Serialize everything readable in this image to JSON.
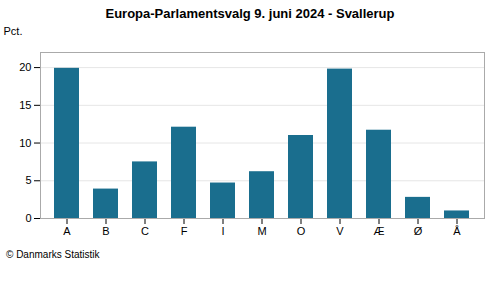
{
  "chart_data": {
    "type": "bar",
    "title": "Europa-Parlamentsvalg 9. juni 2024 - Svallerup",
    "categories": [
      "A",
      "B",
      "C",
      "F",
      "I",
      "M",
      "O",
      "V",
      "Æ",
      "Ø",
      "Å"
    ],
    "values": [
      19.9,
      3.9,
      7.5,
      12.1,
      4.7,
      6.2,
      11.0,
      19.8,
      11.7,
      2.8,
      1.0
    ],
    "color": "#1a6e8e",
    "ylabel": "Pct.",
    "ylim": [
      0,
      22
    ],
    "yticks": [
      0,
      5,
      10,
      15,
      20
    ],
    "grid": true,
    "footer": "© Danmarks Statistik"
  }
}
